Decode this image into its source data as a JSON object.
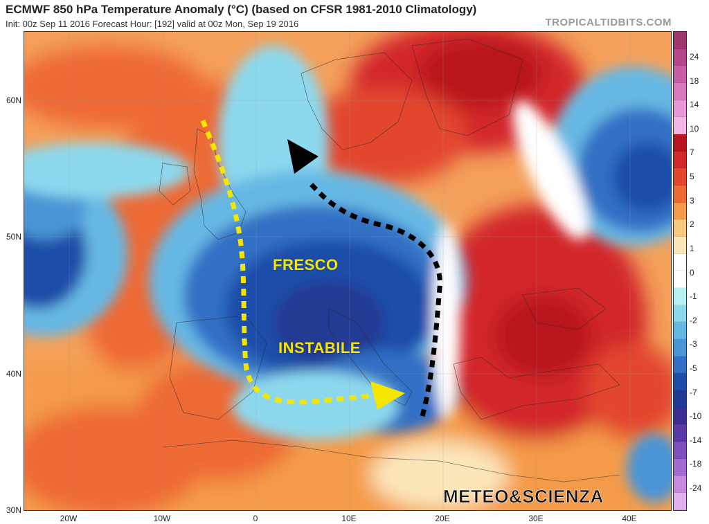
{
  "header": {
    "title": "ECMWF 850 hPa Temperature Anomaly (°C) (based on CFSR 1981-2010 Climatology)",
    "subtitle": "Init: 00z Sep 11 2016   Forecast Hour: [192]   valid at 00z Mon, Sep 19 2016",
    "brand": "TROPICALTIDBITS.COM"
  },
  "axes": {
    "lat_labels": [
      "60N",
      "50N",
      "40N",
      "30N"
    ],
    "lon_labels": [
      "20W",
      "10W",
      "0",
      "10E",
      "20E",
      "30E",
      "40E"
    ]
  },
  "colorbar": {
    "labels": [
      "24",
      "18",
      "14",
      "10",
      "7",
      "5",
      "3",
      "2",
      "1",
      "0",
      "-1",
      "-2",
      "-3",
      "-5",
      "-7",
      "-10",
      "-14",
      "-18",
      "-24"
    ],
    "colors": [
      "#a0366e",
      "#b5468c",
      "#c85ca6",
      "#da78bf",
      "#e996d5",
      "#f3b6e4",
      "#b8141e",
      "#d2282a",
      "#e2462d",
      "#ee6a34",
      "#f49b4a",
      "#f8c880",
      "#fbe6ba",
      "#ffffff",
      "#ffffff",
      "#b6f0f0",
      "#8cd9ee",
      "#66b8e4",
      "#4a95d6",
      "#336fc4",
      "#1f4ea8",
      "#213a93",
      "#3c2f94",
      "#5a3aa6",
      "#7e4fbd",
      "#a26ad2",
      "#c88ae0",
      "#e2b0ec"
    ]
  },
  "overlay_text": {
    "fresco": "FRESCO",
    "instabile": "INSTABILE",
    "watermark": "METEO&SCIENZA"
  },
  "colors": {
    "warm_accent": "#e2462d",
    "cold_accent": "#213a93",
    "yellow_arrow": "#f5e600",
    "black_arrow": "#000000"
  }
}
